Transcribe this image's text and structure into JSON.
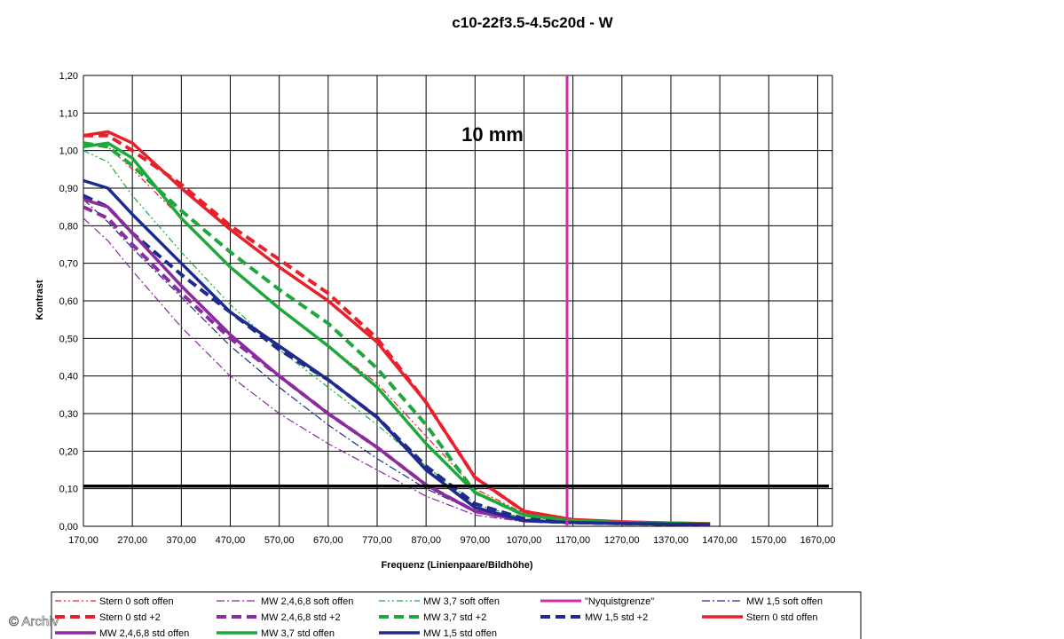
{
  "colors": {
    "red": "#e8202a",
    "purple": "#8a2b9e",
    "green": "#1ea83c",
    "navy": "#1e2a8c",
    "magenta": "#d62aa8",
    "black": "#000000"
  },
  "watermark": "© Archiv",
  "chart_data": {
    "type": "line",
    "title": "c10-22f3.5-4.5c20d - W",
    "xlabel": "Frequenz (Linienpaare/Bildhöhe)",
    "ylabel": "Kontrast",
    "annotation": "10 mm",
    "xlim": [
      170,
      1700
    ],
    "ylim": [
      0,
      1.2
    ],
    "grid": true,
    "legend_position": "bottom",
    "x_ticks": [
      "170,00",
      "270,00",
      "370,00",
      "470,00",
      "570,00",
      "670,00",
      "770,00",
      "870,00",
      "970,00",
      "1070,00",
      "1170,00",
      "1270,00",
      "1370,00",
      "1470,00",
      "1570,00",
      "1670,00"
    ],
    "y_ticks": [
      "0,00",
      "0,10",
      "0,20",
      "0,30",
      "0,40",
      "0,50",
      "0,60",
      "0,70",
      "0,80",
      "0,90",
      "1,00",
      "1,10",
      "1,20"
    ],
    "nyquist_x": 1158,
    "threshold_y": 0.107,
    "series": [
      {
        "name": "Stern 0 soft offen",
        "color": "red",
        "style": "dashdotdot",
        "width": 1.2,
        "x": [
          170,
          220,
          270,
          370,
          470,
          570,
          670,
          770,
          870,
          970,
          1070,
          1170,
          1270,
          1370,
          1450
        ],
        "y": [
          1.02,
          1.01,
          0.95,
          0.82,
          0.69,
          0.58,
          0.48,
          0.38,
          0.24,
          0.1,
          0.035,
          0.015,
          0.01,
          0.008,
          0.006
        ]
      },
      {
        "name": "MW 2,4,6,8 soft offen",
        "color": "purple",
        "style": "dashdot",
        "width": 1.2,
        "x": [
          170,
          220,
          270,
          370,
          470,
          570,
          670,
          770,
          870,
          970,
          1070,
          1170,
          1270,
          1370,
          1450
        ],
        "y": [
          0.82,
          0.76,
          0.68,
          0.53,
          0.4,
          0.3,
          0.22,
          0.15,
          0.08,
          0.03,
          0.012,
          0.008,
          0.006,
          0.005,
          0.005
        ]
      },
      {
        "name": "MW 3,7 soft offen",
        "color": "green",
        "style": "dashdotdot",
        "width": 1.2,
        "x": [
          170,
          220,
          270,
          370,
          470,
          570,
          670,
          770,
          870,
          970,
          1070,
          1170,
          1270,
          1370,
          1450
        ],
        "y": [
          1.0,
          0.97,
          0.88,
          0.73,
          0.59,
          0.47,
          0.37,
          0.27,
          0.16,
          0.06,
          0.02,
          0.012,
          0.009,
          0.007,
          0.006
        ]
      },
      {
        "name": "\"Nyquistgrenze\"",
        "color": "magenta",
        "style": "solid",
        "width": 3,
        "legend_only": true,
        "x": [],
        "y": []
      },
      {
        "name": "MW 1,5 soft offen",
        "color": "navy",
        "style": "dashdot",
        "width": 1.2,
        "x": [
          170,
          220,
          270,
          370,
          470,
          570,
          670,
          770,
          870,
          970,
          1070,
          1170,
          1270,
          1370,
          1450
        ],
        "y": [
          0.87,
          0.81,
          0.74,
          0.61,
          0.48,
          0.37,
          0.27,
          0.18,
          0.1,
          0.04,
          0.015,
          0.01,
          0.007,
          0.006,
          0.005
        ]
      },
      {
        "name": "Stern 0 std +2",
        "color": "red",
        "style": "dash",
        "width": 4,
        "x": [
          170,
          220,
          270,
          370,
          470,
          570,
          670,
          770,
          870,
          970,
          1070,
          1170,
          1270,
          1370,
          1450
        ],
        "y": [
          1.04,
          1.04,
          1.0,
          0.91,
          0.8,
          0.71,
          0.62,
          0.5,
          0.33,
          0.13,
          0.04,
          0.015,
          0.01,
          0.008,
          0.006
        ]
      },
      {
        "name": "MW 2,4,6,8 std +2",
        "color": "purple",
        "style": "dash",
        "width": 4,
        "x": [
          170,
          220,
          270,
          370,
          470,
          570,
          670,
          770,
          870,
          970,
          1070,
          1170,
          1270,
          1370,
          1450
        ],
        "y": [
          0.85,
          0.82,
          0.75,
          0.62,
          0.5,
          0.4,
          0.3,
          0.21,
          0.11,
          0.04,
          0.015,
          0.01,
          0.007,
          0.006,
          0.005
        ]
      },
      {
        "name": "MW 3,7 std +2",
        "color": "green",
        "style": "dash",
        "width": 4,
        "x": [
          170,
          220,
          270,
          370,
          470,
          570,
          670,
          770,
          870,
          970,
          1070,
          1170,
          1270,
          1370,
          1450
        ],
        "y": [
          1.02,
          1.01,
          0.96,
          0.84,
          0.73,
          0.63,
          0.54,
          0.42,
          0.27,
          0.09,
          0.03,
          0.015,
          0.01,
          0.008,
          0.006
        ]
      },
      {
        "name": "MW 1,5 std +2",
        "color": "navy",
        "style": "dash",
        "width": 4,
        "x": [
          170,
          220,
          270,
          370,
          470,
          570,
          670,
          770,
          870,
          970,
          1070,
          1170,
          1270,
          1370,
          1450
        ],
        "y": [
          0.88,
          0.85,
          0.78,
          0.67,
          0.57,
          0.47,
          0.39,
          0.29,
          0.16,
          0.06,
          0.02,
          0.01,
          0.008,
          0.006,
          0.005
        ]
      },
      {
        "name": "Stern 0 std offen",
        "color": "red",
        "style": "solid",
        "width": 3.5,
        "x": [
          170,
          220,
          270,
          370,
          470,
          570,
          670,
          770,
          870,
          970,
          1070,
          1170,
          1270,
          1370,
          1450
        ],
        "y": [
          1.04,
          1.05,
          1.02,
          0.9,
          0.79,
          0.69,
          0.6,
          0.49,
          0.33,
          0.13,
          0.04,
          0.018,
          0.012,
          0.009,
          0.007
        ]
      },
      {
        "name": "MW 2,4,6,8 std offen",
        "color": "purple",
        "style": "solid",
        "width": 3.5,
        "x": [
          170,
          220,
          270,
          370,
          470,
          570,
          670,
          770,
          870,
          970,
          1070,
          1170,
          1270,
          1370,
          1450
        ],
        "y": [
          0.87,
          0.85,
          0.78,
          0.64,
          0.51,
          0.4,
          0.3,
          0.21,
          0.11,
          0.04,
          0.015,
          0.01,
          0.007,
          0.006,
          0.005
        ]
      },
      {
        "name": "MW 3,7 std offen",
        "color": "green",
        "style": "solid",
        "width": 3.5,
        "x": [
          170,
          220,
          270,
          370,
          470,
          570,
          670,
          770,
          870,
          970,
          1070,
          1170,
          1270,
          1370,
          1450
        ],
        "y": [
          1.01,
          1.02,
          0.98,
          0.82,
          0.69,
          0.58,
          0.48,
          0.37,
          0.22,
          0.09,
          0.03,
          0.015,
          0.01,
          0.008,
          0.006
        ]
      },
      {
        "name": "MW 1,5 std offen",
        "color": "navy",
        "style": "solid",
        "width": 3.5,
        "x": [
          170,
          220,
          270,
          370,
          470,
          570,
          670,
          770,
          870,
          970,
          1070,
          1170,
          1270,
          1370,
          1450
        ],
        "y": [
          0.92,
          0.9,
          0.83,
          0.7,
          0.57,
          0.48,
          0.39,
          0.29,
          0.15,
          0.05,
          0.015,
          0.01,
          0.008,
          0.006,
          0.005
        ]
      }
    ]
  }
}
